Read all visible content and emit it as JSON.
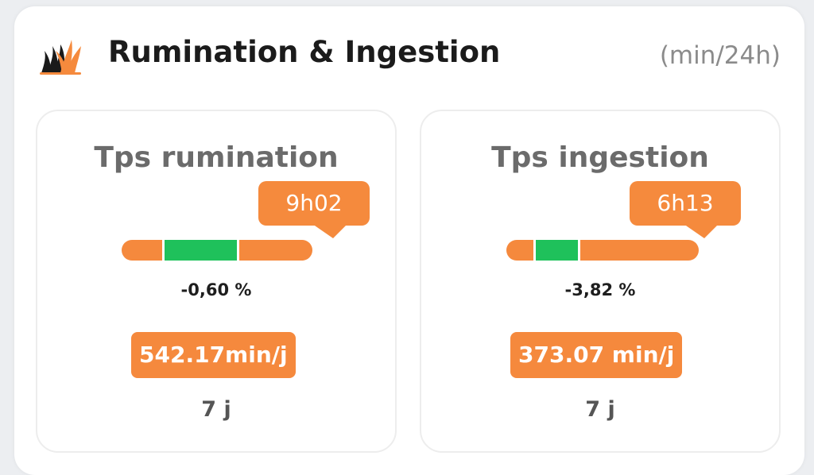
{
  "header": {
    "icon": "grass-icon",
    "title": "Rumination & Ingestion",
    "unit": "(min/24h)"
  },
  "colors": {
    "accent_orange": "#f5893d",
    "ok_green": "#1fc15b",
    "title_gray": "#6b6b6b"
  },
  "cards": [
    {
      "title": "Tps rumination",
      "bubble": "9h02",
      "change": "-0,60 %",
      "value": "542.17min/j",
      "period": "7 j"
    },
    {
      "title": "Tps ingestion",
      "bubble": "6h13",
      "change": "-3,82 %",
      "value": "373.07 min/j",
      "period": "7 j"
    }
  ]
}
